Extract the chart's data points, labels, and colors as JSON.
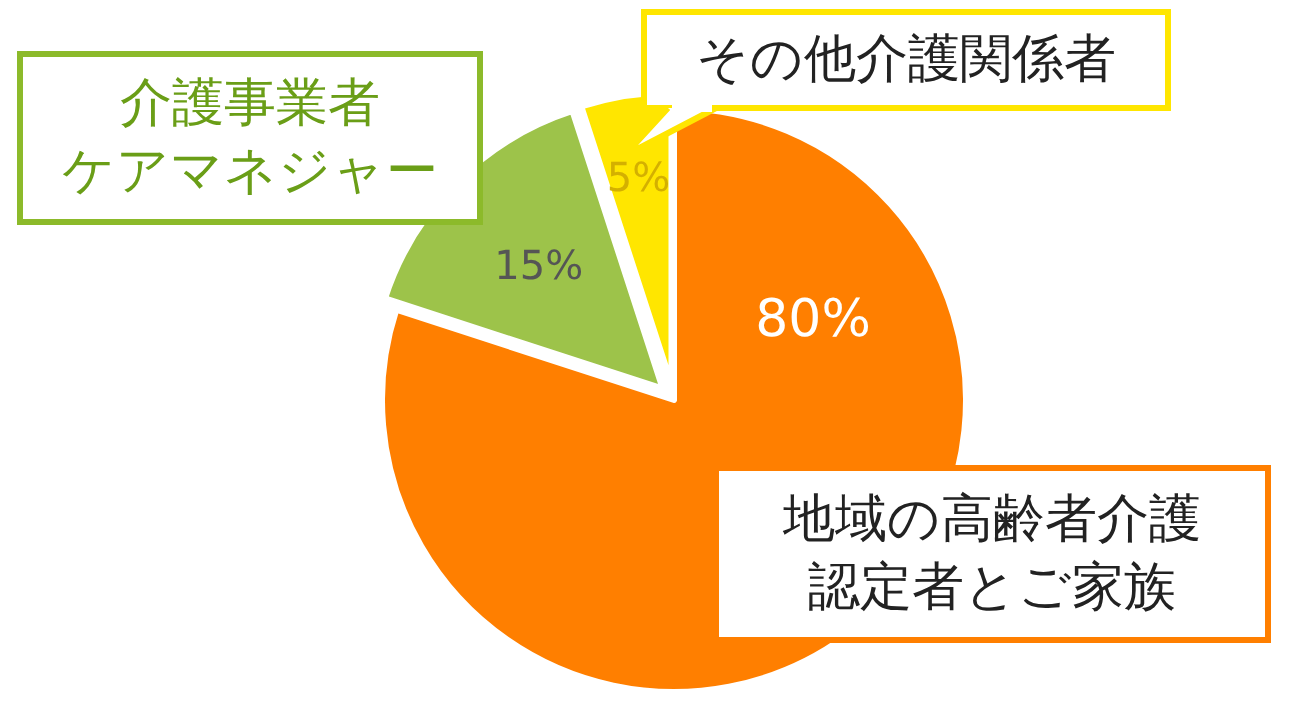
{
  "chart_data": {
    "type": "pie",
    "categories": [
      "地域の高齢者介護認定者とご家族",
      "介護事業者ケアマネジャー",
      "その他介護関係者"
    ],
    "values": [
      80,
      15,
      5
    ],
    "colors": [
      "#ff7f00",
      "#9dc34a",
      "#ffe600"
    ],
    "value_labels": [
      "80%",
      "15%",
      "5%"
    ]
  }
}
